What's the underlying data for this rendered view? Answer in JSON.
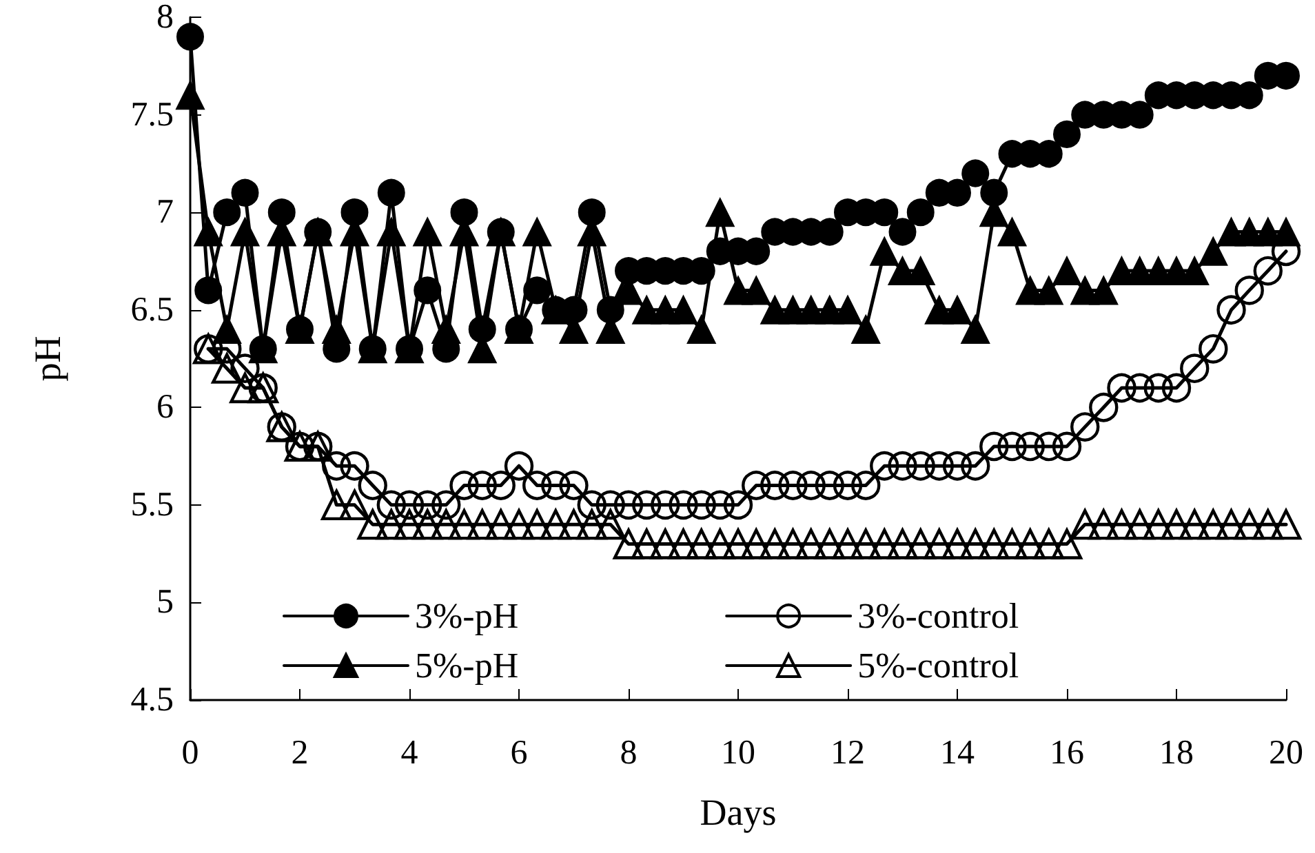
{
  "chart_data": {
    "type": "line",
    "xlabel": "Days",
    "ylabel": "pH",
    "xlim": [
      0,
      20
    ],
    "ylim": [
      4.5,
      8
    ],
    "xticks": [
      0,
      2,
      4,
      6,
      8,
      10,
      12,
      14,
      16,
      18,
      20
    ],
    "yticks": [
      4.5,
      5,
      5.5,
      6,
      6.5,
      7,
      7.5,
      8
    ],
    "grid": false,
    "legend": "bottom",
    "line_style": "solid",
    "x": [
      0,
      0.33,
      0.67,
      1,
      1.33,
      1.67,
      2,
      2.33,
      2.67,
      3,
      3.33,
      3.67,
      4,
      4.33,
      4.67,
      5,
      5.33,
      5.67,
      6,
      6.33,
      6.67,
      7,
      7.33,
      7.67,
      8,
      8.33,
      8.67,
      9,
      9.33,
      9.67,
      10,
      10.33,
      10.67,
      11,
      11.33,
      11.67,
      12,
      12.33,
      12.67,
      13,
      13.33,
      13.67,
      14,
      14.33,
      14.67,
      15,
      15.33,
      15.67,
      16,
      16.33,
      16.67,
      17,
      17.33,
      17.67,
      18,
      18.33,
      18.67,
      19,
      19.33,
      19.67,
      20
    ],
    "series": [
      {
        "name": "3%-pH",
        "color": "#000000",
        "marker": "circle",
        "values": [
          7.9,
          6.6,
          7.0,
          7.1,
          6.3,
          7.0,
          6.4,
          6.9,
          6.3,
          7.0,
          6.3,
          7.1,
          6.3,
          6.6,
          6.3,
          7.0,
          6.4,
          6.9,
          6.4,
          6.6,
          6.5,
          6.5,
          7.0,
          6.5,
          6.7,
          6.7,
          6.7,
          6.7,
          6.7,
          6.8,
          6.8,
          6.8,
          6.9,
          6.9,
          6.9,
          6.9,
          7.0,
          7.0,
          7.0,
          6.9,
          7.0,
          7.1,
          7.1,
          7.2,
          7.1,
          7.3,
          7.3,
          7.3,
          7.4,
          7.5,
          7.5,
          7.5,
          7.5,
          7.6,
          7.6,
          7.6,
          7.6,
          7.6,
          7.6,
          7.7,
          7.7
        ]
      },
      {
        "name": "3%-control",
        "color": "#000000",
        "marker": "circle-open",
        "values": [
          null,
          6.3,
          6.3,
          6.2,
          6.1,
          5.9,
          5.8,
          5.8,
          5.7,
          5.7,
          5.6,
          5.5,
          5.5,
          5.5,
          5.5,
          5.6,
          5.6,
          5.6,
          5.7,
          5.6,
          5.6,
          5.6,
          5.5,
          5.5,
          5.5,
          5.5,
          5.5,
          5.5,
          5.5,
          5.5,
          5.5,
          5.6,
          5.6,
          5.6,
          5.6,
          5.6,
          5.6,
          5.6,
          5.7,
          5.7,
          5.7,
          5.7,
          5.7,
          5.7,
          5.8,
          5.8,
          5.8,
          5.8,
          5.8,
          5.9,
          6.0,
          6.1,
          6.1,
          6.1,
          6.1,
          6.2,
          6.3,
          6.5,
          6.6,
          6.7,
          6.8
        ]
      },
      {
        "name": "5%-pH",
        "color": "#000000",
        "marker": "triangle",
        "values": [
          7.6,
          6.9,
          6.4,
          6.9,
          6.3,
          6.9,
          6.4,
          6.9,
          6.4,
          6.9,
          6.3,
          6.9,
          6.3,
          6.9,
          6.4,
          6.9,
          6.3,
          6.9,
          6.4,
          6.9,
          6.5,
          6.4,
          6.9,
          6.4,
          6.6,
          6.5,
          6.5,
          6.5,
          6.4,
          7.0,
          6.6,
          6.6,
          6.5,
          6.5,
          6.5,
          6.5,
          6.5,
          6.4,
          6.8,
          6.7,
          6.7,
          6.5,
          6.5,
          6.4,
          7.0,
          6.9,
          6.6,
          6.6,
          6.7,
          6.6,
          6.6,
          6.7,
          6.7,
          6.7,
          6.7,
          6.7,
          6.8,
          6.9,
          6.9,
          6.9,
          6.9
        ]
      },
      {
        "name": "5%-control",
        "color": "#000000",
        "marker": "triangle-open",
        "values": [
          null,
          6.3,
          6.2,
          6.1,
          6.1,
          5.9,
          5.8,
          5.8,
          5.5,
          5.5,
          5.4,
          5.4,
          5.4,
          5.4,
          5.4,
          5.4,
          5.4,
          5.4,
          5.4,
          5.4,
          5.4,
          5.4,
          5.4,
          5.4,
          5.3,
          5.3,
          5.3,
          5.3,
          5.3,
          5.3,
          5.3,
          5.3,
          5.3,
          5.3,
          5.3,
          5.3,
          5.3,
          5.3,
          5.3,
          5.3,
          5.3,
          5.3,
          5.3,
          5.3,
          5.3,
          5.3,
          5.3,
          5.3,
          5.3,
          5.4,
          5.4,
          5.4,
          5.4,
          5.4,
          5.4,
          5.4,
          5.4,
          5.4,
          5.4,
          5.4,
          5.4
        ]
      }
    ]
  }
}
